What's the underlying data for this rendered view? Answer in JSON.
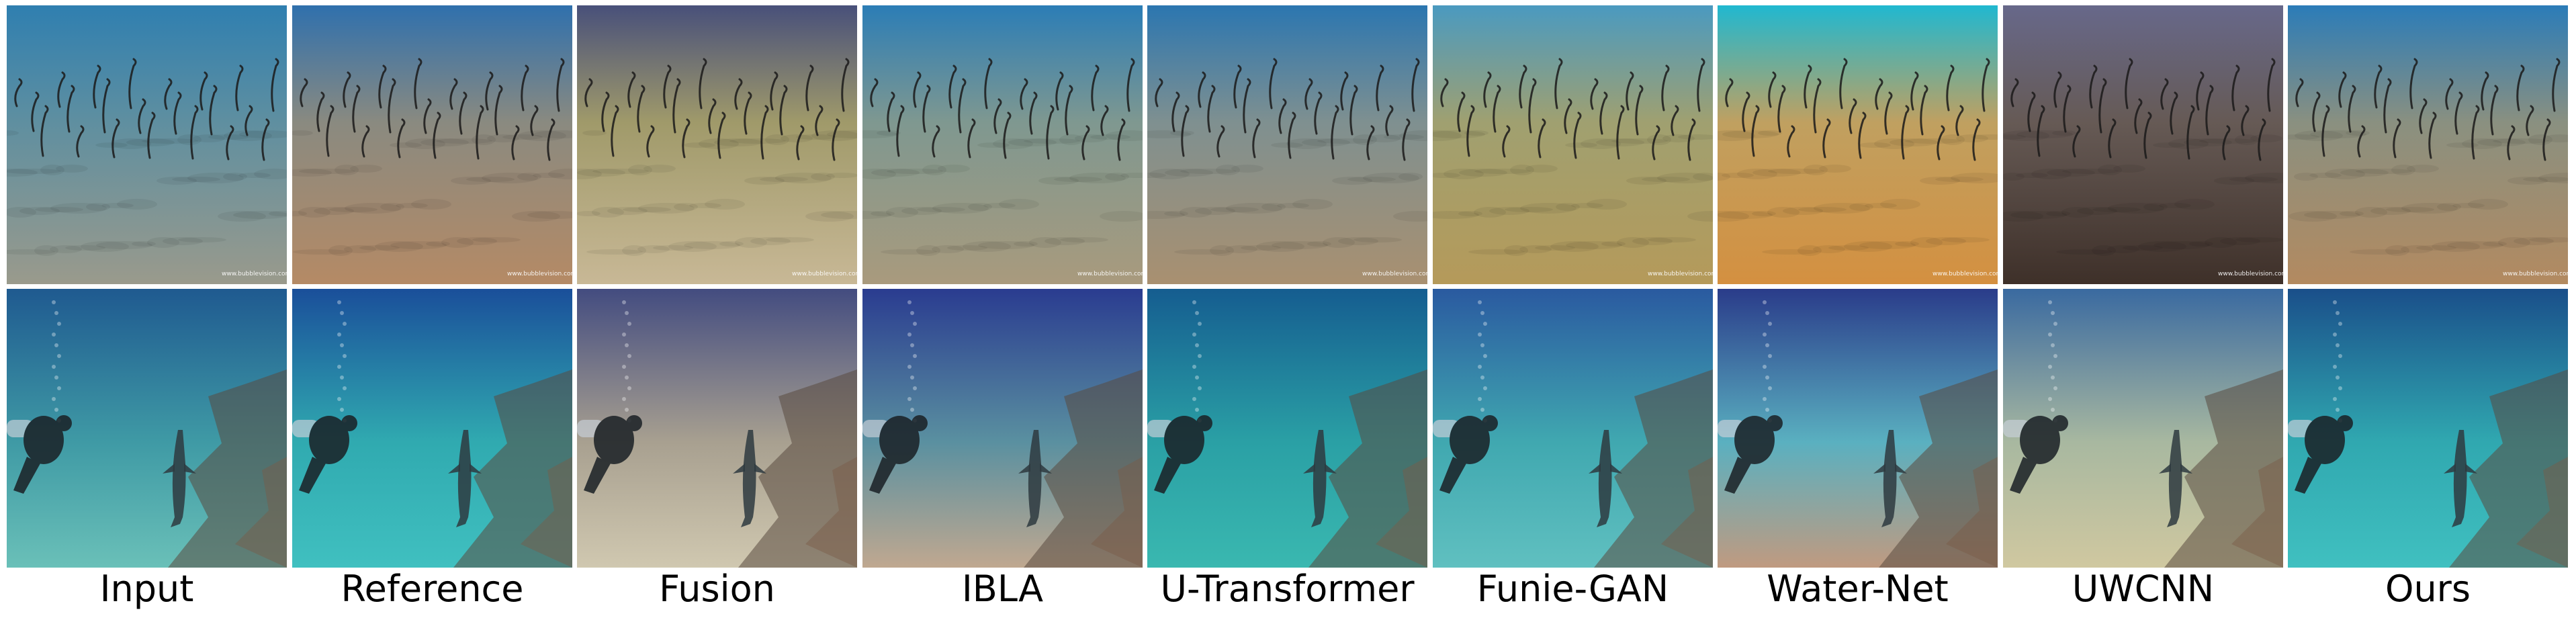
{
  "methods": [
    {
      "label": "Input",
      "colors": {
        "top": "#2f7fb0",
        "mid": "#5f8fa0",
        "bottom": "#9a9a8c"
      }
    },
    {
      "label": "Reference",
      "colors": {
        "top": "#2f70ad",
        "mid": "#8a8a80",
        "bottom": "#b58a65"
      }
    },
    {
      "label": "Fusion",
      "colors": {
        "top": "#48507a",
        "mid": "#a09a6a",
        "bottom": "#c8b896"
      }
    },
    {
      "label": "IBLA",
      "colors": {
        "top": "#2b7db6",
        "mid": "#7f9890",
        "bottom": "#a99a7d"
      }
    },
    {
      "label": "U-Transformer",
      "colors": {
        "top": "#2b76b0",
        "mid": "#7f9090",
        "bottom": "#a99070"
      }
    },
    {
      "label": "Funie-GAN",
      "colors": {
        "top": "#4a9ac0",
        "mid": "#a0a070",
        "bottom": "#b59a5a"
      }
    },
    {
      "label": "Water-Net",
      "colors": {
        "top": "#20b8d0",
        "mid": "#c0a060",
        "bottom": "#d49040"
      }
    },
    {
      "label": "UWCNN",
      "colors": {
        "top": "#67688a",
        "mid": "#665a55",
        "bottom": "#3e3029"
      }
    },
    {
      "label": "Ours",
      "colors": {
        "top": "#2b7cb8",
        "mid": "#8a9080",
        "bottom": "#b38a60"
      }
    }
  ],
  "scene2": [
    {
      "label": "Input",
      "colors": {
        "top": "#1f5a90",
        "mid": "#3f9aa5",
        "bottom": "#6ac0b8"
      }
    },
    {
      "label": "Reference",
      "colors": {
        "top": "#1a4f9a",
        "mid": "#30aab0",
        "bottom": "#40c0c0"
      }
    },
    {
      "label": "Fusion",
      "colors": {
        "top": "#434c80",
        "mid": "#a8a090",
        "bottom": "#d0c8b0"
      }
    },
    {
      "label": "IBLA",
      "colors": {
        "top": "#2a3c90",
        "mid": "#5a90a0",
        "bottom": "#c0a890"
      }
    },
    {
      "label": "U-Transformer",
      "colors": {
        "top": "#155d90",
        "mid": "#2aa0a5",
        "bottom": "#3ab8b0"
      }
    },
    {
      "label": "Funie-GAN",
      "colors": {
        "top": "#2a5aa0",
        "mid": "#40a8b0",
        "bottom": "#60c0c0"
      }
    },
    {
      "label": "Water-Net",
      "colors": {
        "top": "#2a3c8a",
        "mid": "#5ab0c0",
        "bottom": "#c09a80"
      }
    },
    {
      "label": "UWCNN",
      "colors": {
        "top": "#3a6aa0",
        "mid": "#a8b8a0",
        "bottom": "#d0c8a0"
      }
    },
    {
      "label": "Ours",
      "colors": {
        "top": "#1a4f8a",
        "mid": "#30a8b0",
        "bottom": "#40c0c0"
      }
    }
  ],
  "watermark": "www.bubblevision.com"
}
